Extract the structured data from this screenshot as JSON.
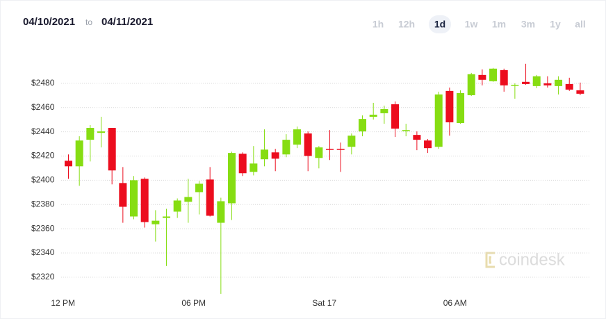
{
  "header": {
    "start_date": "04/10/2021",
    "to": "to",
    "end_date": "04/11/2021",
    "ranges": [
      {
        "label": "1h",
        "selected": false
      },
      {
        "label": "12h",
        "selected": false
      },
      {
        "label": "1d",
        "selected": true
      },
      {
        "label": "1w",
        "selected": false
      },
      {
        "label": "1m",
        "selected": false
      },
      {
        "label": "3m",
        "selected": false
      },
      {
        "label": "1y",
        "selected": false
      },
      {
        "label": "all",
        "selected": false
      }
    ]
  },
  "chart_data": {
    "type": "candlestick",
    "watermark": "coindesk",
    "up_color": "#86dd12",
    "down_color": "#ec0d1e",
    "x": [
      0.25,
      0.75,
      1.25,
      1.75,
      2.25,
      2.75,
      3.25,
      3.75,
      4.25,
      4.75,
      5.25,
      5.75,
      6.25,
      6.75,
      7.25,
      7.75,
      8.25,
      8.75,
      9.25,
      9.75,
      10.25,
      10.75,
      11.25,
      11.75,
      12.25,
      12.75,
      13.25,
      13.75,
      14.25,
      14.75,
      15.25,
      15.75,
      16.25,
      16.75,
      17.25,
      17.75,
      18.25,
      18.75,
      19.25,
      19.75,
      20.25,
      20.75,
      21.25,
      21.75,
      22.25,
      22.75,
      23.25,
      23.75
    ],
    "open": [
      2416.1,
      2411.5,
      2433.4,
      2439.1,
      2443.2,
      2397.7,
      2370.1,
      2401.2,
      2363.7,
      2368.9,
      2374.1,
      2382.2,
      2390.2,
      2400.6,
      2364.9,
      2381.0,
      2421.9,
      2406.9,
      2417.3,
      2423.0,
      2421.3,
      2429.4,
      2438.6,
      2418.4,
      2425.9,
      2425.9,
      2427.6,
      2440.3,
      2452.4,
      2455.3,
      2462.7,
      2440.9,
      2437.4,
      2432.8,
      2427.6,
      2473.7,
      2447.2,
      2470.2,
      2486.9,
      2481.7,
      2490.9,
      2478.3,
      2481.2,
      2477.7,
      2480.0,
      2477.7,
      2479.4,
      2474.2
    ],
    "high": [
      2421.3,
      2436.3,
      2445.5,
      2452.4,
      2443.2,
      2410.9,
      2403.5,
      2402.3,
      2375.3,
      2376.4,
      2385.0,
      2401.2,
      2399.4,
      2410.9,
      2385.6,
      2423.6,
      2423.0,
      2428.2,
      2442.0,
      2425.9,
      2438.0,
      2444.3,
      2440.3,
      2428.2,
      2441.4,
      2431.1,
      2438.6,
      2453.5,
      2463.9,
      2461.6,
      2465.0,
      2446.6,
      2440.3,
      2434.0,
      2473.1,
      2476.5,
      2474.2,
      2488.6,
      2491.5,
      2492.7,
      2492.1,
      2480.0,
      2496.1,
      2486.9,
      2485.8,
      2485.8,
      2484.6,
      2480.6
    ],
    "low": [
      2401.2,
      2395.4,
      2415.5,
      2427.1,
      2396.6,
      2364.9,
      2367.8,
      2360.9,
      2349.4,
      2329.2,
      2368.9,
      2364.9,
      2371.8,
      2370.1,
      2306.2,
      2367.2,
      2403.5,
      2404.0,
      2411.5,
      2407.5,
      2419.0,
      2426.5,
      2407.5,
      2409.8,
      2416.7,
      2406.9,
      2421.3,
      2436.3,
      2450.1,
      2446.6,
      2435.7,
      2436.3,
      2424.8,
      2422.5,
      2425.9,
      2436.8,
      2446.6,
      2469.6,
      2478.3,
      2481.2,
      2473.1,
      2467.3,
      2478.8,
      2476.0,
      2476.5,
      2470.8,
      2473.7,
      2470.2
    ],
    "close": [
      2411.5,
      2432.8,
      2443.2,
      2440.3,
      2408.1,
      2378.1,
      2400.0,
      2365.5,
      2366.6,
      2370.1,
      2383.3,
      2386.2,
      2397.1,
      2370.7,
      2382.7,
      2422.5,
      2405.8,
      2413.8,
      2425.3,
      2417.8,
      2433.4,
      2442.0,
      2420.1,
      2427.1,
      2425.3,
      2425.3,
      2436.8,
      2450.6,
      2454.1,
      2458.7,
      2442.6,
      2441.4,
      2433.4,
      2426.5,
      2470.8,
      2447.8,
      2471.9,
      2487.5,
      2482.9,
      2492.1,
      2478.3,
      2478.8,
      2479.4,
      2485.8,
      2478.3,
      2482.9,
      2474.8,
      2471.4
    ],
    "xlim": [
      -0.5,
      24.2
    ],
    "xticks": [
      {
        "value": 0,
        "label": "12 PM"
      },
      {
        "value": 6,
        "label": "06 PM"
      },
      {
        "value": 12,
        "label": "Sat 17"
      },
      {
        "value": 18,
        "label": "06 AM"
      }
    ],
    "ylim": [
      2305,
      2500
    ],
    "yticks": [
      {
        "value": 2320,
        "label": "$2320"
      },
      {
        "value": 2340,
        "label": "$2340"
      },
      {
        "value": 2360,
        "label": "$2360"
      },
      {
        "value": 2380,
        "label": "$2380"
      },
      {
        "value": 2400,
        "label": "$2400"
      },
      {
        "value": 2420,
        "label": "$2420"
      },
      {
        "value": 2440,
        "label": "$2440"
      },
      {
        "value": 2460,
        "label": "$2460"
      },
      {
        "value": 2480,
        "label": "$2480"
      }
    ],
    "grid": true
  }
}
